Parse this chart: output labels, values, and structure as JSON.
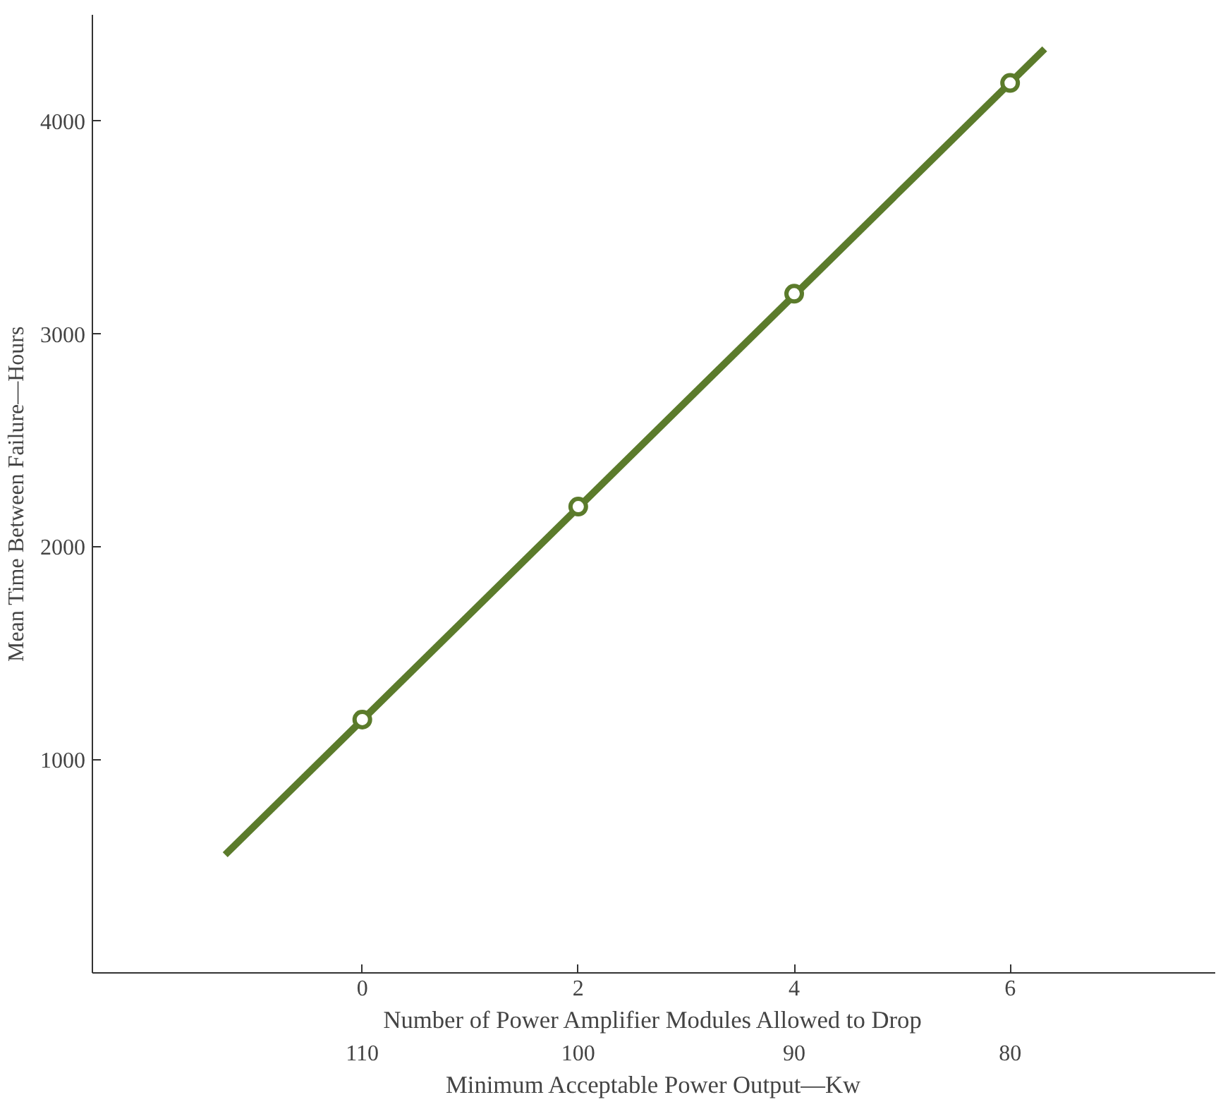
{
  "chart_data": {
    "type": "line",
    "xlabel": "Number of Power Amplifier Modules Allowed to Drop",
    "ylabel": "Mean Time Between Failure—Hours",
    "x2label": "Minimum Acceptable Power Output—Kw",
    "xlim": [
      -2.5,
      7.9
    ],
    "xticks": [
      0,
      2,
      4,
      6
    ],
    "x2lim": [
      122.5,
      70.5
    ],
    "x2ticks": [
      110,
      100,
      90,
      80
    ],
    "ylim": [
      0,
      4500
    ],
    "yticks": [
      1000,
      2000,
      3000,
      4000
    ],
    "grid": false,
    "series": [
      {
        "x": [
          -1.27,
          6.32
        ],
        "values": [
          555,
          4340
        ],
        "color": "#5b7b2b",
        "line_style": "solid"
      },
      {
        "type": "scatter",
        "x": [
          0,
          2,
          4,
          6
        ],
        "values": [
          1190,
          2190,
          3190,
          4180
        ],
        "color": "#5b7b2b",
        "marker": "circle"
      }
    ]
  }
}
